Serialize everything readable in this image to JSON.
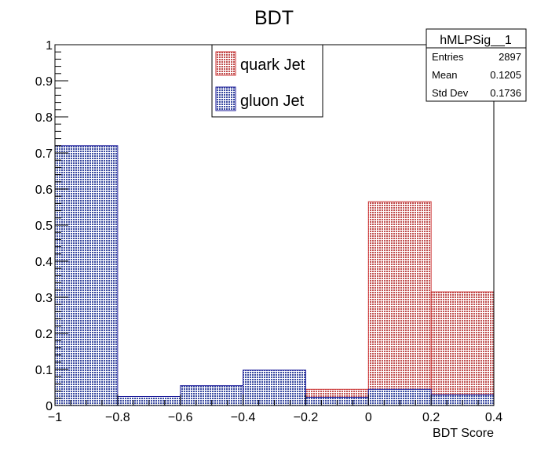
{
  "chart_data": {
    "type": "bar",
    "title": "BDT",
    "xlabel": "BDT Score",
    "ylabel": "",
    "xlim": [
      -1,
      0.4
    ],
    "ylim": [
      0,
      1
    ],
    "grid": false,
    "x_ticks": [
      "−1",
      "−0.8",
      "−0.6",
      "−0.4",
      "−0.2",
      "0",
      "0.2",
      "0.4"
    ],
    "y_ticks": [
      "0",
      "0.1",
      "0.2",
      "0.3",
      "0.4",
      "0.5",
      "0.6",
      "0.7",
      "0.8",
      "0.9",
      "1"
    ],
    "bin_edges": [
      -1,
      -0.8,
      -0.6,
      -0.4,
      -0.2,
      0,
      0.2,
      0.4
    ],
    "series": [
      {
        "name": "quark Jet",
        "color": "#cc3333",
        "fill": "#c88a8a",
        "values": [
          0.0,
          0.0,
          0.0,
          0.0,
          0.045,
          0.565,
          0.315
        ]
      },
      {
        "name": "gluon Jet",
        "color": "#1a1a99",
        "fill": "#6c7ab8",
        "values": [
          0.72,
          0.025,
          0.055,
          0.098,
          0.023,
          0.045,
          0.03
        ]
      }
    ],
    "legend_position": "top-center",
    "stats_box": {
      "title": "hMLPSig__1",
      "rows": [
        {
          "label": "Entries",
          "value": "2897"
        },
        {
          "label": "Mean",
          "value": "0.1205"
        },
        {
          "label": "Std Dev",
          "value": "0.1736"
        }
      ]
    }
  }
}
